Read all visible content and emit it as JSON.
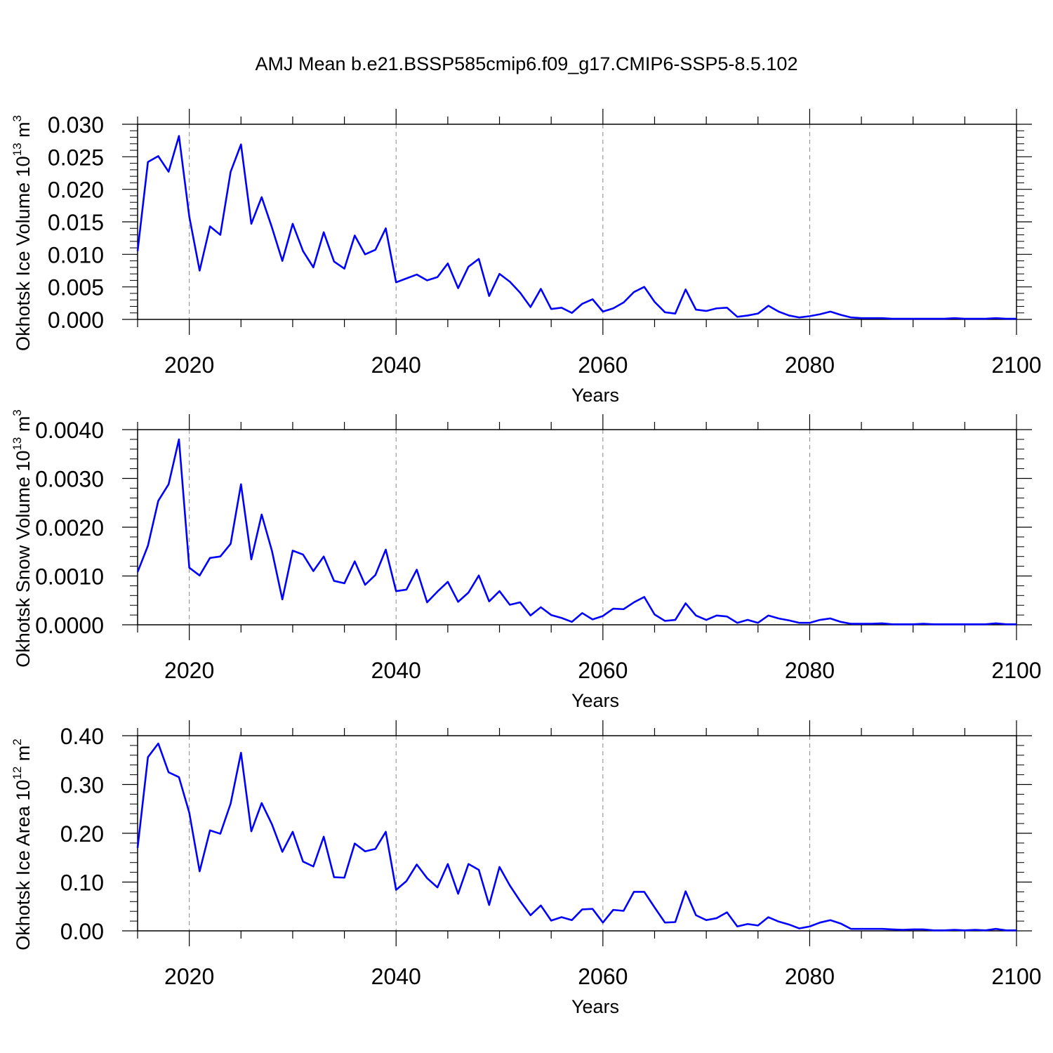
{
  "figure": {
    "title": "AMJ Mean b.e21.BSSP585cmip6.f09_g17.CMIP6-SSP5-8.5.102",
    "line_color": "#0000ff"
  },
  "chart_data": [
    {
      "type": "line",
      "xlabel": "Years",
      "ylabel": "Okhotsk Ice Volume 10",
      "ylabel_exp": "13",
      "ylabel_unit": " m",
      "ylabel_unit_exp": "3",
      "xlim": [
        2015,
        2100
      ],
      "ylim": [
        0,
        0.03
      ],
      "x_ticks": [
        "2020",
        "2040",
        "2060",
        "2080",
        "2100"
      ],
      "y_ticks": [
        "0.000",
        "0.005",
        "0.010",
        "0.015",
        "0.020",
        "0.025",
        "0.030"
      ],
      "grid": "dashed vertical at major x ticks",
      "x_start": 2015,
      "values": [
        0.0105,
        0.0242,
        0.0251,
        0.0227,
        0.0282,
        0.0158,
        0.0075,
        0.0143,
        0.013,
        0.0227,
        0.0269,
        0.0147,
        0.0188,
        0.0141,
        0.009,
        0.0147,
        0.0105,
        0.008,
        0.0134,
        0.0089,
        0.0078,
        0.0129,
        0.01,
        0.0107,
        0.014,
        0.0057,
        0.0063,
        0.0069,
        0.006,
        0.0065,
        0.0086,
        0.0048,
        0.0081,
        0.0093,
        0.0036,
        0.007,
        0.0058,
        0.0041,
        0.0019,
        0.0047,
        0.0016,
        0.0018,
        0.001,
        0.0024,
        0.0031,
        0.0012,
        0.0017,
        0.0026,
        0.0042,
        0.005,
        0.0027,
        0.0011,
        0.0009,
        0.0046,
        0.0015,
        0.0013,
        0.0017,
        0.0018,
        0.0004,
        0.0006,
        0.0009,
        0.0021,
        0.0012,
        0.0006,
        0.0003,
        0.0005,
        0.0008,
        0.0012,
        0.0007,
        0.0003,
        0.0002,
        0.0002,
        0.0002,
        0.0001,
        0.0001,
        0.0001,
        0.0001,
        0.0001,
        0.0001,
        0.0002,
        0.0001,
        0.0001,
        0.0001,
        0.0002,
        0.0001,
        0.0001
      ]
    },
    {
      "type": "line",
      "xlabel": "Years",
      "ylabel": "Okhotsk Snow Volume 10",
      "ylabel_exp": "13",
      "ylabel_unit": " m",
      "ylabel_unit_exp": "3",
      "xlim": [
        2015,
        2100
      ],
      "ylim": [
        0,
        0.004
      ],
      "x_ticks": [
        "2020",
        "2040",
        "2060",
        "2080",
        "2100"
      ],
      "y_ticks": [
        "0.0000",
        "0.0010",
        "0.0020",
        "0.0030",
        "0.0040"
      ],
      "grid": "dashed vertical at major x ticks",
      "x_start": 2015,
      "values": [
        0.00108,
        0.00162,
        0.00254,
        0.00288,
        0.0038,
        0.00117,
        0.00101,
        0.00137,
        0.0014,
        0.00166,
        0.00288,
        0.00134,
        0.00226,
        0.00151,
        0.00052,
        0.00152,
        0.00144,
        0.0011,
        0.0014,
        0.0009,
        0.00085,
        0.0013,
        0.00082,
        0.00102,
        0.00154,
        0.00069,
        0.00072,
        0.00113,
        0.00046,
        0.00068,
        0.00088,
        0.00047,
        0.00066,
        0.00101,
        0.00048,
        0.00069,
        0.00041,
        0.00046,
        0.00019,
        0.00036,
        0.0002,
        0.00014,
        6e-05,
        0.00024,
        0.00011,
        0.00018,
        0.00033,
        0.00032,
        0.00046,
        0.00057,
        0.00021,
        8e-05,
        0.0001,
        0.00044,
        0.00019,
        0.0001,
        0.00019,
        0.00017,
        4e-05,
        0.0001,
        4e-05,
        0.00019,
        0.00013,
        9e-05,
        4e-05,
        4e-05,
        0.0001,
        0.00013,
        6e-05,
        2e-05,
        2e-05,
        2e-05,
        3e-05,
        1e-05,
        1e-05,
        1e-05,
        2e-05,
        1e-05,
        1e-05,
        1e-05,
        1e-05,
        1e-05,
        1e-05,
        3e-05,
        1e-05,
        1e-05
      ]
    },
    {
      "type": "line",
      "xlabel": "Years",
      "ylabel": "Okhotsk Ice Area 10",
      "ylabel_exp": "12",
      "ylabel_unit": " m",
      "ylabel_unit_exp": "2",
      "xlim": [
        2015,
        2100
      ],
      "ylim": [
        0,
        0.4
      ],
      "x_ticks": [
        "2020",
        "2040",
        "2060",
        "2080",
        "2100"
      ],
      "y_ticks": [
        "0.00",
        "0.10",
        "0.20",
        "0.30",
        "0.40"
      ],
      "grid": "dashed vertical at major x ticks",
      "x_start": 2015,
      "values": [
        0.17,
        0.356,
        0.384,
        0.325,
        0.315,
        0.242,
        0.122,
        0.206,
        0.199,
        0.261,
        0.365,
        0.204,
        0.262,
        0.218,
        0.162,
        0.203,
        0.142,
        0.132,
        0.193,
        0.11,
        0.109,
        0.179,
        0.163,
        0.168,
        0.203,
        0.084,
        0.102,
        0.136,
        0.108,
        0.089,
        0.137,
        0.076,
        0.137,
        0.125,
        0.053,
        0.131,
        0.093,
        0.061,
        0.032,
        0.052,
        0.021,
        0.028,
        0.022,
        0.044,
        0.045,
        0.017,
        0.043,
        0.041,
        0.08,
        0.08,
        0.048,
        0.017,
        0.018,
        0.081,
        0.032,
        0.022,
        0.026,
        0.038,
        0.009,
        0.014,
        0.011,
        0.028,
        0.019,
        0.013,
        0.005,
        0.009,
        0.017,
        0.022,
        0.015,
        0.004,
        0.004,
        0.004,
        0.004,
        0.003,
        0.002,
        0.003,
        0.003,
        0.001,
        0.001,
        0.002,
        0.001,
        0.002,
        0.001,
        0.004,
        0.001,
        0.001
      ]
    }
  ]
}
